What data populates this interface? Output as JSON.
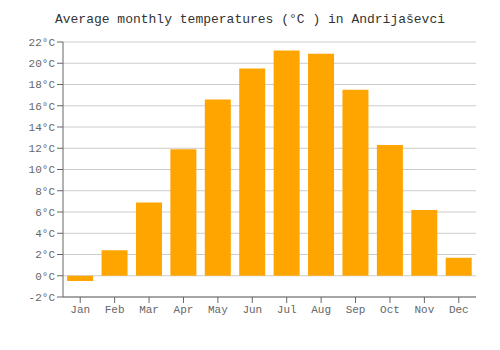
{
  "chart_data": {
    "type": "bar",
    "title": "Average monthly temperatures (°C ) in Andrijaševci",
    "categories": [
      "Jan",
      "Feb",
      "Mar",
      "Apr",
      "May",
      "Jun",
      "Jul",
      "Aug",
      "Sep",
      "Oct",
      "Nov",
      "Dec"
    ],
    "values": [
      -0.5,
      2.4,
      6.9,
      11.9,
      16.6,
      19.5,
      21.2,
      20.9,
      17.5,
      12.3,
      6.2,
      1.7
    ],
    "color": "#FFA500",
    "ylim": [
      -2,
      22
    ],
    "yticks": [
      {
        "value": -2,
        "label": "-2°C"
      },
      {
        "value": 0,
        "label": "0°C"
      },
      {
        "value": 2,
        "label": "2°C"
      },
      {
        "value": 4,
        "label": "4°C"
      },
      {
        "value": 6,
        "label": "6°C"
      },
      {
        "value": 8,
        "label": "8°C"
      },
      {
        "value": 10,
        "label": "10°C"
      },
      {
        "value": 12,
        "label": "12°C"
      },
      {
        "value": 14,
        "label": "14°C"
      },
      {
        "value": 16,
        "label": "16°C"
      },
      {
        "value": 18,
        "label": "18°C"
      },
      {
        "value": 20,
        "label": "20°C"
      },
      {
        "value": 22,
        "label": "22°C"
      }
    ],
    "grid": true
  }
}
